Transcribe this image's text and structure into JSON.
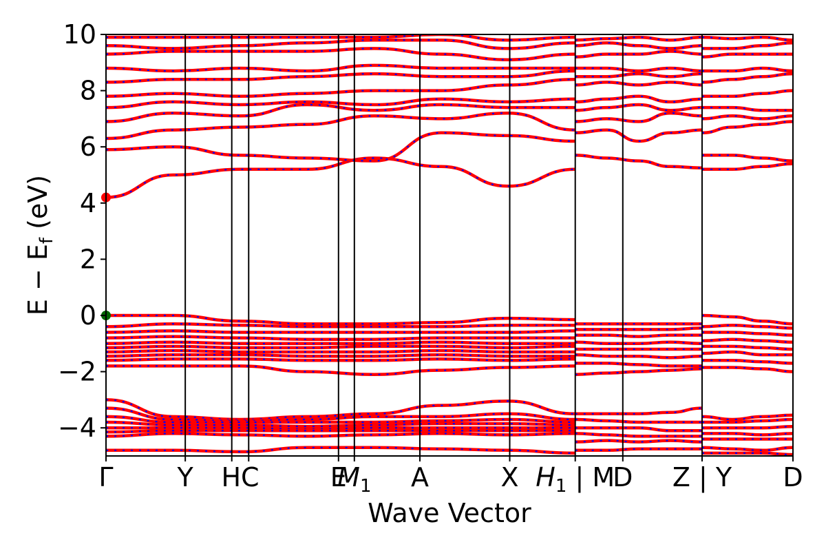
{
  "chart_data": {
    "type": "line",
    "title": "",
    "xlabel": "Wave Vector",
    "ylabel": "E − E_f (eV)",
    "ylabel_main": "E  −  E",
    "ylabel_sub": "f",
    "ylabel_unit": " (eV)",
    "ylim": [
      -5,
      10
    ],
    "yticks": [
      -4,
      -2,
      0,
      2,
      4,
      6,
      8,
      10
    ],
    "ytick_labels": [
      "−4",
      "−2",
      "0",
      "2",
      "4",
      "6",
      "8",
      "10"
    ],
    "grid": false,
    "legend": "none",
    "series_colors": {
      "line": "#ff0000",
      "dash": "#0000ff"
    },
    "marker_colors": {
      "cbm": "#ff0000",
      "vbm": "#006400"
    },
    "kpath": {
      "kpoints": [
        {
          "label": "Γ",
          "x": 0.0
        },
        {
          "label": "Y",
          "x": 0.75
        },
        {
          "label": "H",
          "x": 1.19
        },
        {
          "label": "C",
          "x": 1.35
        },
        {
          "label": "E",
          "x": 2.2
        },
        {
          "label": "M1",
          "x": 2.35
        },
        {
          "label": "A",
          "x": 2.97
        },
        {
          "label": "X",
          "x": 3.82
        },
        {
          "label": "H1 | M",
          "x": 4.44
        },
        {
          "label": "D",
          "x": 4.89
        },
        {
          "label": "Z | Y",
          "x": 5.64
        },
        {
          "label": "D",
          "x": 6.5
        }
      ],
      "tick_labels": [
        {
          "text": "Γ",
          "x": 0.0
        },
        {
          "text": "Y",
          "x": 0.75
        },
        {
          "text": "HC",
          "x": 1.27
        },
        {
          "text": "E",
          "x": 2.2
        },
        {
          "text": "M",
          "sub": "1",
          "x": 2.35
        },
        {
          "text": "A",
          "x": 2.97
        },
        {
          "text": "X",
          "x": 3.82
        },
        {
          "text": "H",
          "sub": "1",
          "after": " | M",
          "x": 4.44
        },
        {
          "text": "D",
          "x": 4.89
        },
        {
          "text": "Z | Y",
          "x": 5.64
        },
        {
          "text": "D",
          "x": 6.5
        }
      ]
    },
    "segments": [
      {
        "x0": 0.0,
        "x1": 4.44,
        "bands": [
          [
            4.2,
            5.0,
            5.2,
            5.2,
            5.6,
            5.3,
            4.6,
            5.2
          ],
          [
            5.9,
            6.0,
            5.7,
            5.6,
            5.5,
            6.5,
            6.4,
            6.2
          ],
          [
            6.3,
            6.6,
            6.7,
            6.8,
            7.1,
            7.0,
            7.2,
            6.6
          ],
          [
            6.9,
            7.2,
            7.1,
            7.5,
            7.3,
            7.5,
            7.4,
            7.4
          ],
          [
            7.4,
            7.6,
            7.5,
            7.6,
            7.5,
            7.7,
            7.6,
            7.7
          ],
          [
            7.8,
            7.9,
            7.8,
            7.9,
            8.0,
            8.0,
            8.2,
            8.4
          ],
          [
            8.3,
            8.4,
            8.4,
            8.5,
            8.6,
            8.5,
            8.5,
            8.7
          ],
          [
            8.8,
            8.7,
            8.8,
            8.7,
            8.9,
            8.8,
            8.8,
            8.8
          ],
          [
            9.3,
            9.4,
            9.4,
            9.4,
            9.5,
            9.3,
            9.1,
            9.3
          ],
          [
            9.6,
            9.5,
            9.6,
            9.7,
            9.8,
            9.8,
            9.5,
            9.7
          ],
          [
            9.9,
            9.9,
            9.9,
            9.9,
            9.9,
            10.0,
            9.8,
            9.9
          ],
          [
            0.0,
            0.0,
            -0.2,
            -0.3,
            -0.3,
            -0.25,
            -0.1,
            -0.15
          ],
          [
            -0.4,
            -0.3,
            -0.35,
            -0.4,
            -0.4,
            -0.4,
            -0.35,
            -0.35
          ],
          [
            -0.6,
            -0.55,
            -0.6,
            -0.6,
            -0.6,
            -0.6,
            -0.6,
            -0.55
          ],
          [
            -0.8,
            -0.75,
            -0.8,
            -0.85,
            -0.85,
            -0.8,
            -0.8,
            -0.8
          ],
          [
            -1.0,
            -0.95,
            -1.0,
            -1.0,
            -1.0,
            -0.95,
            -1.0,
            -1.0
          ],
          [
            -1.15,
            -1.1,
            -1.15,
            -1.15,
            -1.1,
            -1.1,
            -1.15,
            -1.1
          ],
          [
            -1.3,
            -1.25,
            -1.3,
            -1.3,
            -1.3,
            -1.25,
            -1.3,
            -1.3
          ],
          [
            -1.45,
            -1.4,
            -1.4,
            -1.45,
            -1.45,
            -1.4,
            -1.45,
            -1.45
          ],
          [
            -1.6,
            -1.55,
            -1.55,
            -1.6,
            -1.6,
            -1.55,
            -1.6,
            -1.55
          ],
          [
            -1.8,
            -1.8,
            -1.8,
            -2.0,
            -2.1,
            -1.95,
            -1.85,
            -1.8
          ],
          [
            -3.0,
            -3.6,
            -3.7,
            -3.6,
            -3.5,
            -3.2,
            -3.05,
            -3.5
          ],
          [
            -3.3,
            -3.7,
            -3.75,
            -3.7,
            -3.6,
            -3.6,
            -3.5,
            -3.7
          ],
          [
            -3.6,
            -3.8,
            -3.8,
            -3.8,
            -3.8,
            -3.75,
            -3.7,
            -3.8
          ],
          [
            -3.8,
            -3.9,
            -3.9,
            -3.95,
            -3.9,
            -3.85,
            -3.85,
            -3.9
          ],
          [
            -4.0,
            -4.0,
            -4.0,
            -4.05,
            -4.0,
            -4.0,
            -4.0,
            -4.0
          ],
          [
            -4.15,
            -4.1,
            -4.1,
            -4.1,
            -4.1,
            -4.1,
            -4.1,
            -4.1
          ],
          [
            -4.3,
            -4.2,
            -4.25,
            -4.3,
            -4.25,
            -4.2,
            -4.25,
            -4.2
          ],
          [
            -4.8,
            -4.8,
            -4.85,
            -4.7,
            -4.7,
            -4.75,
            -4.8,
            -4.9
          ]
        ]
      },
      {
        "x0": 4.44,
        "x1": 5.64,
        "bands": [
          [
            5.7,
            5.6,
            5.5,
            5.3,
            5.25
          ],
          [
            6.5,
            6.6,
            6.2,
            6.5,
            6.6
          ],
          [
            6.9,
            7.0,
            6.9,
            7.2,
            7.1
          ],
          [
            7.3,
            7.4,
            7.5,
            7.3,
            7.4
          ],
          [
            7.6,
            7.7,
            7.8,
            7.6,
            7.7
          ],
          [
            8.2,
            8.3,
            8.2,
            8.3,
            8.2
          ],
          [
            8.5,
            8.5,
            8.6,
            8.5,
            8.6
          ],
          [
            8.8,
            8.8,
            8.7,
            8.8,
            8.7
          ],
          [
            9.2,
            9.3,
            9.3,
            9.4,
            9.3
          ],
          [
            9.6,
            9.7,
            9.6,
            9.5,
            9.6
          ],
          [
            9.8,
            9.85,
            9.9,
            9.8,
            9.9
          ],
          [
            -0.3,
            -0.3,
            -0.3,
            -0.3,
            -0.3
          ],
          [
            -0.5,
            -0.5,
            -0.5,
            -0.5,
            -0.45
          ],
          [
            -0.7,
            -0.7,
            -0.75,
            -0.7,
            -0.7
          ],
          [
            -0.95,
            -1.0,
            -1.0,
            -0.95,
            -1.0
          ],
          [
            -1.2,
            -1.2,
            -1.2,
            -1.2,
            -1.2
          ],
          [
            -1.4,
            -1.45,
            -1.45,
            -1.5,
            -1.45
          ],
          [
            -1.7,
            -1.7,
            -1.75,
            -1.8,
            -1.8
          ],
          [
            -2.1,
            -2.05,
            -2.0,
            -1.95,
            -1.9
          ],
          [
            -3.5,
            -3.5,
            -3.5,
            -3.45,
            -3.3
          ],
          [
            -3.7,
            -3.75,
            -3.8,
            -3.8,
            -3.8
          ],
          [
            -4.0,
            -4.0,
            -4.0,
            -4.1,
            -4.1
          ],
          [
            -4.2,
            -4.25,
            -4.3,
            -4.3,
            -4.3
          ],
          [
            -4.5,
            -4.45,
            -4.5,
            -4.45,
            -4.5
          ],
          [
            -4.8,
            -4.8,
            -4.75,
            -4.75,
            -4.75
          ]
        ]
      },
      {
        "x0": 5.64,
        "x1": 6.5,
        "bands": [
          [
            5.7,
            5.7,
            5.6,
            5.5
          ],
          [
            5.2,
            5.2,
            5.3,
            5.4
          ],
          [
            6.5,
            6.7,
            6.8,
            6.9
          ],
          [
            7.0,
            7.1,
            7.0,
            7.1
          ],
          [
            7.4,
            7.4,
            7.3,
            7.3
          ],
          [
            7.8,
            7.8,
            7.9,
            8.0
          ],
          [
            8.3,
            8.4,
            8.5,
            8.6
          ],
          [
            8.7,
            8.7,
            8.8,
            8.7
          ],
          [
            9.2,
            9.3,
            9.3,
            9.3
          ],
          [
            9.5,
            9.5,
            9.6,
            9.7
          ],
          [
            9.9,
            9.85,
            9.9,
            9.8
          ],
          [
            0.0,
            -0.05,
            -0.2,
            -0.3
          ],
          [
            -0.4,
            -0.35,
            -0.4,
            -0.45
          ],
          [
            -0.6,
            -0.6,
            -0.65,
            -0.7
          ],
          [
            -0.9,
            -0.85,
            -0.9,
            -0.95
          ],
          [
            -1.1,
            -1.1,
            -1.15,
            -1.2
          ],
          [
            -1.35,
            -1.3,
            -1.4,
            -1.4
          ],
          [
            -1.6,
            -1.6,
            -1.65,
            -1.7
          ],
          [
            -1.85,
            -1.85,
            -1.9,
            -2.0
          ],
          [
            -3.6,
            -3.7,
            -3.6,
            -3.55
          ],
          [
            -3.8,
            -3.8,
            -3.75,
            -3.7
          ],
          [
            -4.0,
            -4.0,
            -4.0,
            -3.95
          ],
          [
            -4.2,
            -4.2,
            -4.25,
            -4.2
          ],
          [
            -4.4,
            -4.4,
            -4.4,
            -4.4
          ],
          [
            -4.7,
            -4.75,
            -4.8,
            -4.7
          ],
          [
            -4.9,
            -4.9,
            -4.9,
            -4.95
          ]
        ]
      }
    ],
    "markers": [
      {
        "name": "cbm",
        "x": 0.0,
        "y": 4.2
      },
      {
        "name": "vbm",
        "x": 0.0,
        "y": 0.0
      }
    ]
  }
}
